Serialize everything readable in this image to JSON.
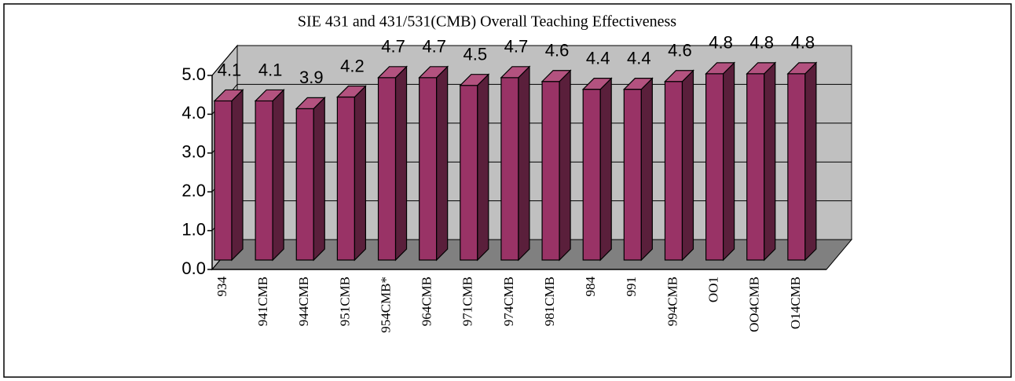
{
  "chart_data": {
    "type": "bar3d",
    "title": "SIE 431 and 431/531(CMB) Overall Teaching Effectiveness",
    "categories": [
      "934",
      "941CMB",
      "944CMB",
      "951CMB",
      "954CMB*",
      "964CMB",
      "971CMB",
      "974CMB",
      "981CMB",
      "984",
      "991",
      "994CMB",
      "OO1",
      "OO4CMB",
      "O14CMB"
    ],
    "values": [
      4.1,
      4.1,
      3.9,
      4.2,
      4.7,
      4.7,
      4.5,
      4.7,
      4.6,
      4.4,
      4.4,
      4.6,
      4.8,
      4.8,
      4.8
    ],
    "color": "#993366",
    "ylim": [
      0,
      5
    ],
    "yticks": [
      {
        "value": 0,
        "label": "0.0"
      },
      {
        "value": 1,
        "label": "1.0"
      },
      {
        "value": 2,
        "label": "2.0"
      },
      {
        "value": 3,
        "label": "3.0"
      },
      {
        "value": 4,
        "label": "4.0"
      },
      {
        "value": 5,
        "label": "5.0"
      }
    ],
    "grid": true
  }
}
